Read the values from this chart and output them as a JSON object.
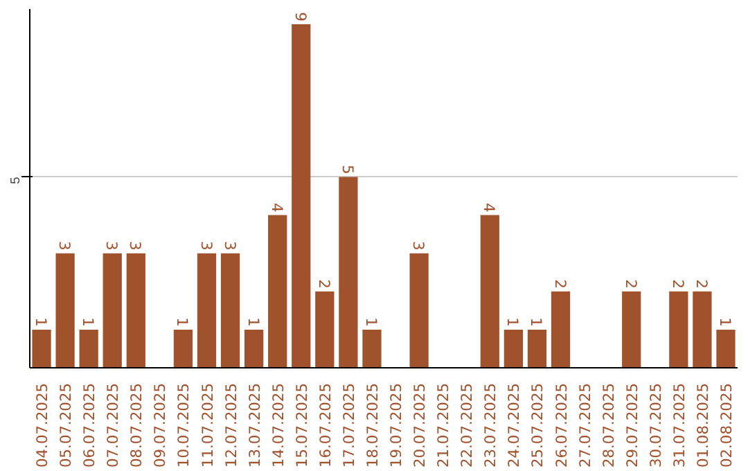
{
  "chart_data": {
    "type": "bar",
    "categories": [
      "04.07.2025",
      "05.07.2025",
      "06.07.2025",
      "07.07.2025",
      "08.07.2025",
      "09.07.2025",
      "10.07.2025",
      "11.07.2025",
      "12.07.2025",
      "13.07.2025",
      "14.07.2025",
      "15.07.2025",
      "16.07.2025",
      "17.07.2025",
      "18.07.2025",
      "19.07.2025",
      "20.07.2025",
      "21.07.2025",
      "22.07.2025",
      "23.07.2025",
      "24.07.2025",
      "25.07.2025",
      "26.07.2025",
      "27.07.2025",
      "28.07.2025",
      "29.07.2025",
      "30.07.2025",
      "31.07.2025",
      "01.08.2025",
      "02.08.2025"
    ],
    "values": [
      1,
      3,
      1,
      3,
      3,
      null,
      1,
      3,
      3,
      1,
      4,
      9,
      2,
      5,
      1,
      null,
      3,
      null,
      null,
      4,
      1,
      1,
      2,
      null,
      null,
      2,
      null,
      2,
      2,
      1
    ],
    "color": "#a0522d",
    "ylim": [
      0,
      9.4
    ],
    "yticks": [
      5
    ],
    "grid": "y",
    "data_labels": true
  }
}
